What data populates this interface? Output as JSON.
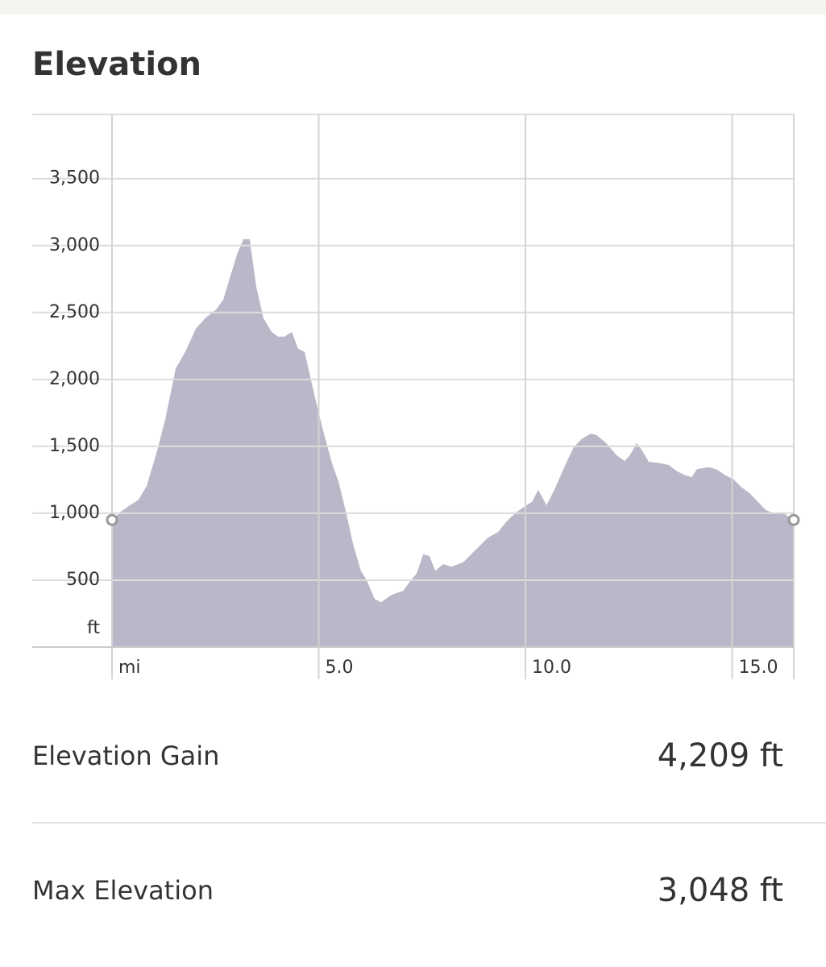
{
  "chart_data": {
    "type": "area",
    "title": "Elevation",
    "color": "#b9b8c8",
    "y_unit": "ft",
    "x": [
      0,
      0.21,
      0.41,
      0.64,
      0.84,
      1.09,
      1.29,
      1.54,
      1.77,
      2.03,
      2.26,
      2.51,
      2.69,
      2.85,
      3.04,
      3.18,
      3.33,
      3.49,
      3.66,
      3.86,
      4.02,
      4.17,
      4.35,
      4.5,
      4.66,
      4.85,
      5.09,
      5.32,
      5.48,
      5.67,
      5.83,
      6.02,
      6.16,
      6.35,
      6.51,
      6.71,
      6.84,
      7.04,
      7.23,
      7.37,
      7.53,
      7.68,
      7.82,
      8.01,
      8.21,
      8.5,
      8.69,
      8.89,
      9.08,
      9.34,
      9.53,
      9.77,
      10.0,
      10.16,
      10.31,
      10.51,
      10.7,
      10.94,
      11.17,
      11.36,
      11.58,
      11.72,
      11.95,
      12.2,
      12.4,
      12.53,
      12.69,
      12.83,
      12.98,
      13.24,
      13.47,
      13.66,
      13.86,
      14.02,
      14.15,
      14.44,
      14.64,
      14.83,
      15.03,
      15.22,
      15.42,
      15.61,
      15.81,
      16.0,
      16.2,
      16.49
    ],
    "values": [
      950,
      1010,
      1055,
      1100,
      1205,
      1465,
      1705,
      2080,
      2205,
      2380,
      2460,
      2520,
      2595,
      2760,
      2950,
      3048,
      3048,
      2690,
      2460,
      2355,
      2320,
      2320,
      2355,
      2230,
      2205,
      1945,
      1635,
      1375,
      1235,
      995,
      770,
      570,
      500,
      360,
      335,
      380,
      400,
      420,
      500,
      550,
      695,
      680,
      570,
      620,
      600,
      635,
      695,
      755,
      815,
      860,
      935,
      1005,
      1055,
      1085,
      1175,
      1060,
      1175,
      1345,
      1495,
      1555,
      1595,
      1585,
      1525,
      1435,
      1390,
      1435,
      1525,
      1465,
      1385,
      1375,
      1360,
      1315,
      1285,
      1270,
      1330,
      1345,
      1325,
      1285,
      1255,
      1195,
      1150,
      1090,
      1025,
      1000,
      1010,
      950
    ],
    "xlim": [
      0,
      16.49
    ],
    "ylim": [
      0,
      3980
    ],
    "xticks": [
      {
        "value": 0,
        "label": "mi"
      },
      {
        "value": 5,
        "label": "5.0"
      },
      {
        "value": 10,
        "label": "10.0"
      },
      {
        "value": 15,
        "label": "15.0"
      }
    ],
    "yticks": [
      500,
      {
        "value": 1000,
        "label": "1,000"
      },
      {
        "value": 1500,
        "label": "1,500"
      },
      {
        "value": 2000,
        "label": "2,000"
      },
      {
        "value": 2500,
        "label": "2,500"
      },
      {
        "value": 3000,
        "label": "3,000"
      },
      {
        "value": 3500,
        "label": "3,500"
      }
    ],
    "grid": true
  },
  "stats": [
    {
      "label": "Elevation Gain",
      "value": "4,209 ft"
    },
    {
      "label": "Max Elevation",
      "value": "3,048 ft"
    }
  ]
}
